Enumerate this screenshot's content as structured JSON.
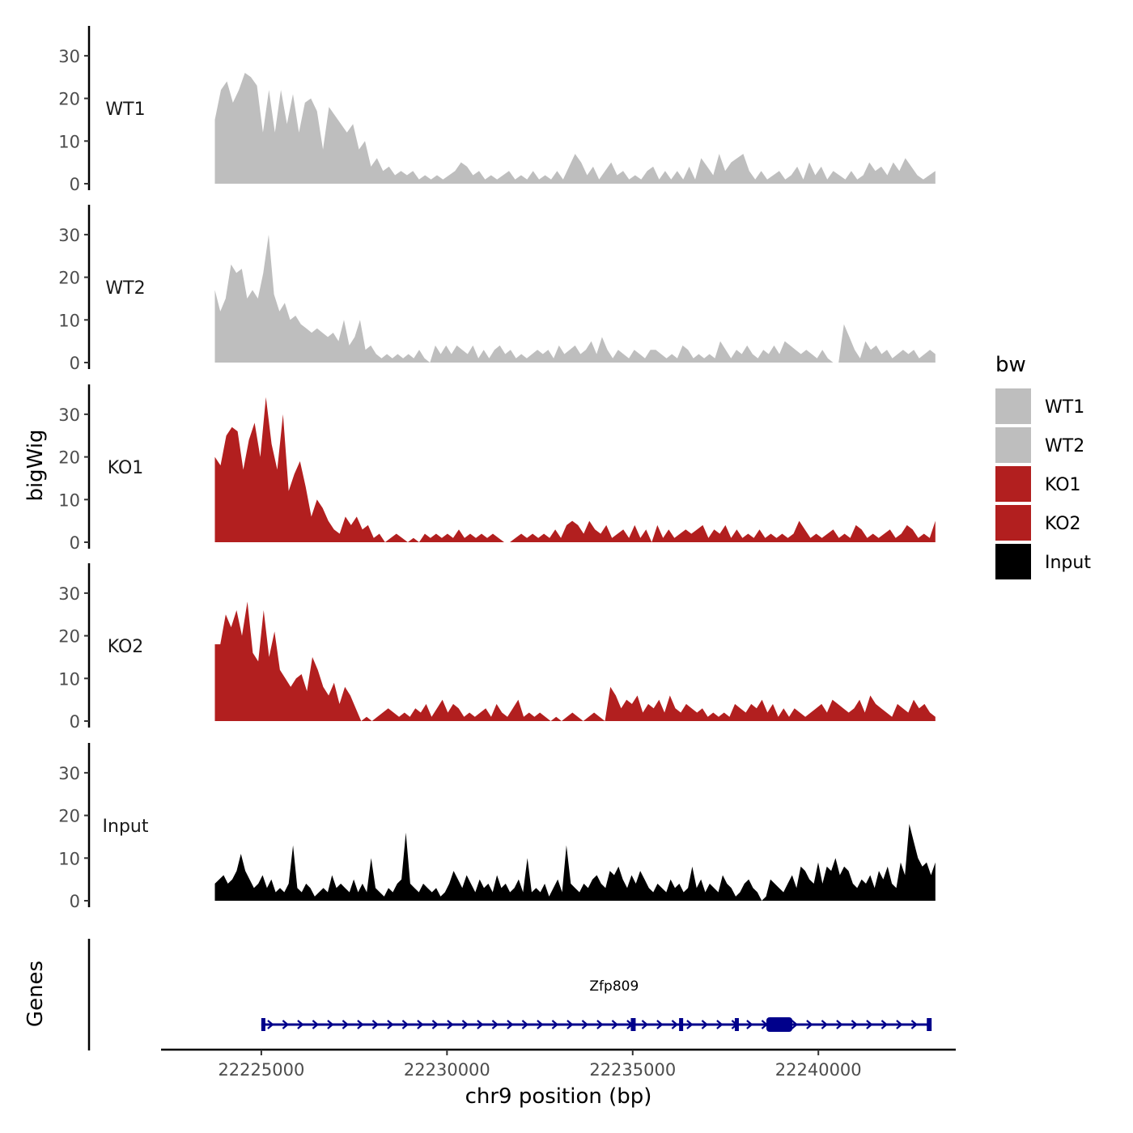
{
  "chart_data": {
    "type": "area",
    "ylabel": "bigWig",
    "genes_label": "Genes",
    "xlabel": "chr9 position (bp)",
    "xlim": [
      22222300,
      22243700
    ],
    "data_xlim": [
      22223750,
      22243150
    ],
    "ylim": [
      0,
      37
    ],
    "yticks": [
      0,
      10,
      20,
      30
    ],
    "ytick_labels": [
      "0",
      "10",
      "20",
      "30"
    ],
    "xticks": [
      22225000,
      22230000,
      22235000,
      22240000
    ],
    "xtick_labels": [
      "22225000",
      "22230000",
      "22235000",
      "22240000"
    ],
    "legend": {
      "title": "bw",
      "position": "right",
      "entries": [
        {
          "label": "WT1",
          "color": "#bebebe"
        },
        {
          "label": "WT2",
          "color": "#bebebe"
        },
        {
          "label": "KO1",
          "color": "#b21f1f"
        },
        {
          "label": "KO2",
          "color": "#b21f1f"
        },
        {
          "label": "Input",
          "color": "#000000"
        }
      ]
    },
    "series": [
      {
        "name": "WT1",
        "color": "#bebebe",
        "values": [
          15,
          22,
          24,
          19,
          22,
          26,
          25,
          23,
          12,
          22,
          12,
          22,
          14,
          21,
          12,
          19,
          20,
          17,
          8,
          18,
          16,
          14,
          12,
          14,
          8,
          10,
          4,
          6,
          3,
          4,
          2,
          3,
          2,
          3,
          1,
          2,
          1,
          2,
          1,
          2,
          3,
          5,
          4,
          2,
          3,
          1,
          2,
          1,
          2,
          3,
          1,
          2,
          1,
          3,
          1,
          2,
          1,
          3,
          1,
          4,
          7,
          5,
          2,
          4,
          1,
          3,
          5,
          2,
          3,
          1,
          2,
          1,
          3,
          4,
          1,
          3,
          1,
          3,
          1,
          4,
          1,
          6,
          4,
          2,
          7,
          3,
          5,
          6,
          7,
          3,
          1,
          3,
          1,
          2,
          3,
          1,
          2,
          4,
          1,
          5,
          2,
          4,
          1,
          3,
          2,
          1,
          3,
          1,
          2,
          5,
          3,
          4,
          2,
          5,
          3,
          6,
          4,
          2,
          1,
          2,
          3
        ]
      },
      {
        "name": "WT2",
        "color": "#bebebe",
        "values": [
          17,
          12,
          15,
          23,
          21,
          22,
          15,
          17,
          15,
          21,
          30,
          16,
          12,
          14,
          10,
          11,
          9,
          8,
          7,
          8,
          7,
          6,
          7,
          5,
          10,
          4,
          6,
          10,
          3,
          4,
          2,
          1,
          2,
          1,
          2,
          1,
          2,
          1,
          3,
          1,
          0,
          4,
          2,
          4,
          2,
          4,
          3,
          2,
          4,
          1,
          3,
          1,
          3,
          4,
          2,
          3,
          1,
          2,
          1,
          2,
          3,
          2,
          3,
          1,
          4,
          2,
          3,
          4,
          2,
          3,
          5,
          2,
          6,
          3,
          1,
          3,
          2,
          1,
          3,
          2,
          1,
          3,
          3,
          2,
          1,
          2,
          1,
          4,
          3,
          1,
          2,
          1,
          2,
          1,
          5,
          3,
          1,
          3,
          2,
          4,
          2,
          1,
          3,
          2,
          4,
          2,
          5,
          4,
          3,
          2,
          3,
          2,
          1,
          3,
          1,
          0,
          0,
          9,
          6,
          3,
          1,
          5,
          3,
          4,
          2,
          3,
          1,
          2,
          3,
          2,
          3,
          1,
          2,
          3,
          2
        ]
      },
      {
        "name": "KO1",
        "color": "#b21f1f",
        "values": [
          20,
          18,
          25,
          27,
          26,
          17,
          24,
          28,
          20,
          34,
          23,
          17,
          30,
          12,
          16,
          19,
          13,
          6,
          10,
          8,
          5,
          3,
          2,
          6,
          4,
          6,
          3,
          4,
          1,
          2,
          0,
          1,
          2,
          1,
          0,
          1,
          0,
          2,
          1,
          2,
          1,
          2,
          1,
          3,
          1,
          2,
          1,
          2,
          1,
          2,
          1,
          0,
          0,
          1,
          2,
          1,
          2,
          1,
          2,
          1,
          3,
          1,
          4,
          5,
          4,
          2,
          5,
          3,
          2,
          4,
          1,
          2,
          3,
          1,
          4,
          1,
          3,
          0,
          4,
          1,
          3,
          1,
          2,
          3,
          2,
          3,
          4,
          1,
          3,
          2,
          4,
          1,
          3,
          1,
          2,
          1,
          3,
          1,
          2,
          1,
          2,
          1,
          2,
          5,
          3,
          1,
          2,
          1,
          2,
          3,
          1,
          2,
          1,
          4,
          3,
          1,
          2,
          1,
          2,
          3,
          1,
          2,
          4,
          3,
          1,
          2,
          1,
          5
        ]
      },
      {
        "name": "KO2",
        "color": "#b21f1f",
        "values": [
          18,
          18,
          25,
          22,
          26,
          20,
          28,
          16,
          14,
          26,
          15,
          21,
          12,
          10,
          8,
          10,
          11,
          7,
          15,
          12,
          8,
          6,
          9,
          4,
          8,
          6,
          3,
          0,
          1,
          0,
          1,
          2,
          3,
          2,
          1,
          2,
          1,
          3,
          2,
          4,
          1,
          3,
          5,
          2,
          4,
          3,
          1,
          2,
          1,
          2,
          3,
          1,
          4,
          2,
          1,
          3,
          5,
          1,
          2,
          1,
          2,
          1,
          0,
          1,
          0,
          1,
          2,
          1,
          0,
          1,
          2,
          1,
          0,
          8,
          6,
          3,
          5,
          4,
          6,
          2,
          4,
          3,
          5,
          2,
          6,
          3,
          2,
          4,
          3,
          2,
          3,
          1,
          2,
          1,
          2,
          1,
          4,
          3,
          2,
          4,
          3,
          5,
          2,
          4,
          1,
          3,
          1,
          3,
          2,
          1,
          2,
          3,
          4,
          2,
          5,
          4,
          3,
          2,
          3,
          5,
          2,
          6,
          4,
          3,
          2,
          1,
          4,
          3,
          2,
          5,
          3,
          4,
          2,
          1
        ]
      },
      {
        "name": "Input",
        "color": "#000000",
        "values": [
          4,
          5,
          6,
          4,
          5,
          7,
          11,
          7,
          5,
          3,
          4,
          6,
          3,
          5,
          2,
          3,
          2,
          4,
          13,
          3,
          2,
          4,
          3,
          1,
          2,
          3,
          2,
          6,
          3,
          4,
          3,
          2,
          5,
          2,
          4,
          2,
          10,
          3,
          2,
          1,
          3,
          2,
          4,
          5,
          16,
          4,
          3,
          2,
          4,
          3,
          2,
          3,
          1,
          2,
          4,
          7,
          5,
          3,
          6,
          4,
          2,
          5,
          3,
          4,
          2,
          6,
          3,
          4,
          2,
          3,
          5,
          2,
          10,
          2,
          3,
          2,
          4,
          1,
          3,
          5,
          2,
          13,
          4,
          3,
          2,
          4,
          3,
          5,
          6,
          4,
          3,
          7,
          6,
          8,
          5,
          3,
          6,
          4,
          7,
          5,
          3,
          2,
          4,
          3,
          2,
          5,
          3,
          4,
          2,
          3,
          8,
          3,
          5,
          2,
          4,
          3,
          2,
          6,
          4,
          3,
          1,
          2,
          4,
          5,
          3,
          2,
          0,
          1,
          5,
          4,
          3,
          2,
          4,
          6,
          3,
          8,
          7,
          5,
          4,
          9,
          4,
          8,
          7,
          10,
          6,
          8,
          7,
          4,
          3,
          5,
          4,
          6,
          3,
          7,
          5,
          8,
          4,
          3,
          9,
          6,
          18,
          14,
          10,
          8,
          9,
          6,
          9
        ]
      }
    ],
    "gene": {
      "name": "Zfp809",
      "start": 22225000,
      "end": 22243000,
      "strand": "+",
      "exons": [
        [
          22225000,
          22225100
        ],
        [
          22234950,
          22235080
        ],
        [
          22236250,
          22236330
        ],
        [
          22237750,
          22237820
        ],
        [
          22238600,
          22239300
        ],
        [
          22242920,
          22243050
        ]
      ],
      "color": "#00008b"
    }
  }
}
